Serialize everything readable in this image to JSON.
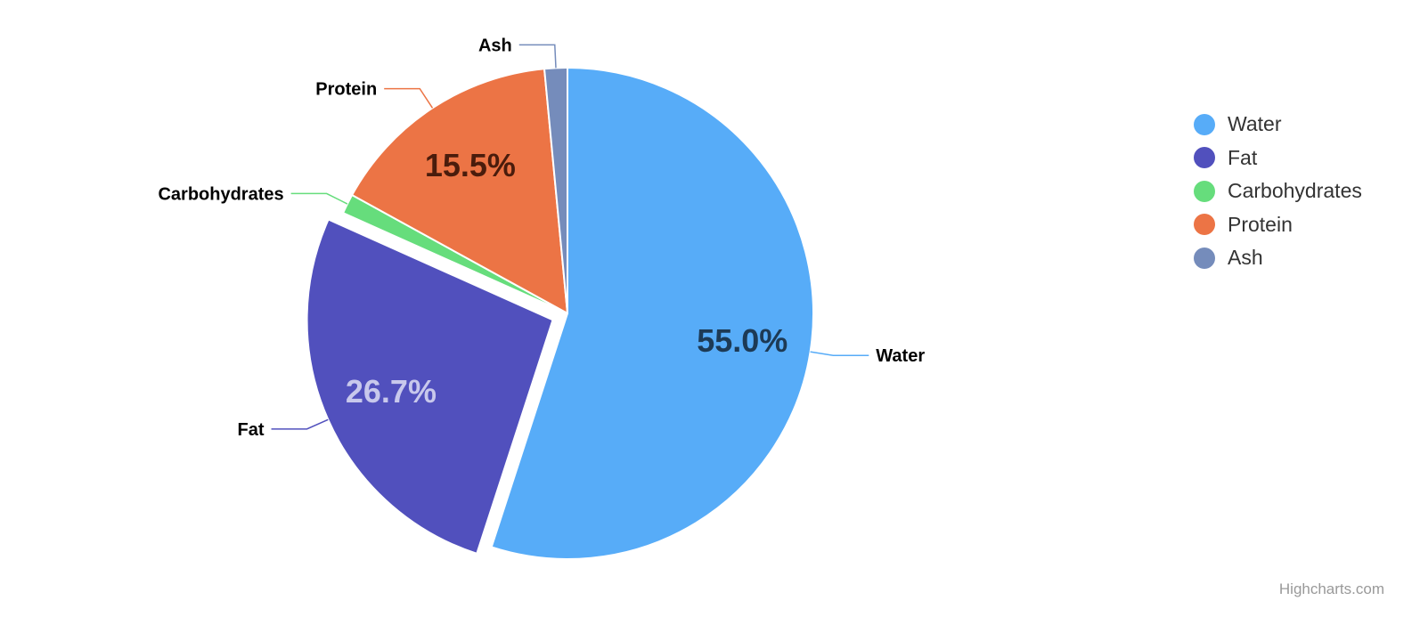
{
  "chart_data": {
    "type": "pie",
    "title": "",
    "categories": [
      "Water",
      "Fat",
      "Carbohydrates",
      "Protein",
      "Ash"
    ],
    "values": [
      55.0,
      26.7,
      1.3,
      15.5,
      1.5
    ],
    "percent_labels": [
      "55.0%",
      "26.7%",
      "",
      "15.5%",
      ""
    ],
    "colors": [
      "#57acf8",
      "#5150bd",
      "#66dd7c",
      "#ec7445",
      "#758cbb"
    ],
    "inside_label_colors": [
      "#1d3a55",
      "#c8c8ec",
      "",
      "#4a1c0c",
      ""
    ],
    "sliced": [
      false,
      true,
      false,
      false,
      false
    ],
    "legend": {
      "position": "right",
      "items": [
        "Water",
        "Fat",
        "Carbohydrates",
        "Protein",
        "Ash"
      ]
    }
  },
  "credits": {
    "text": "Highcharts.com"
  }
}
